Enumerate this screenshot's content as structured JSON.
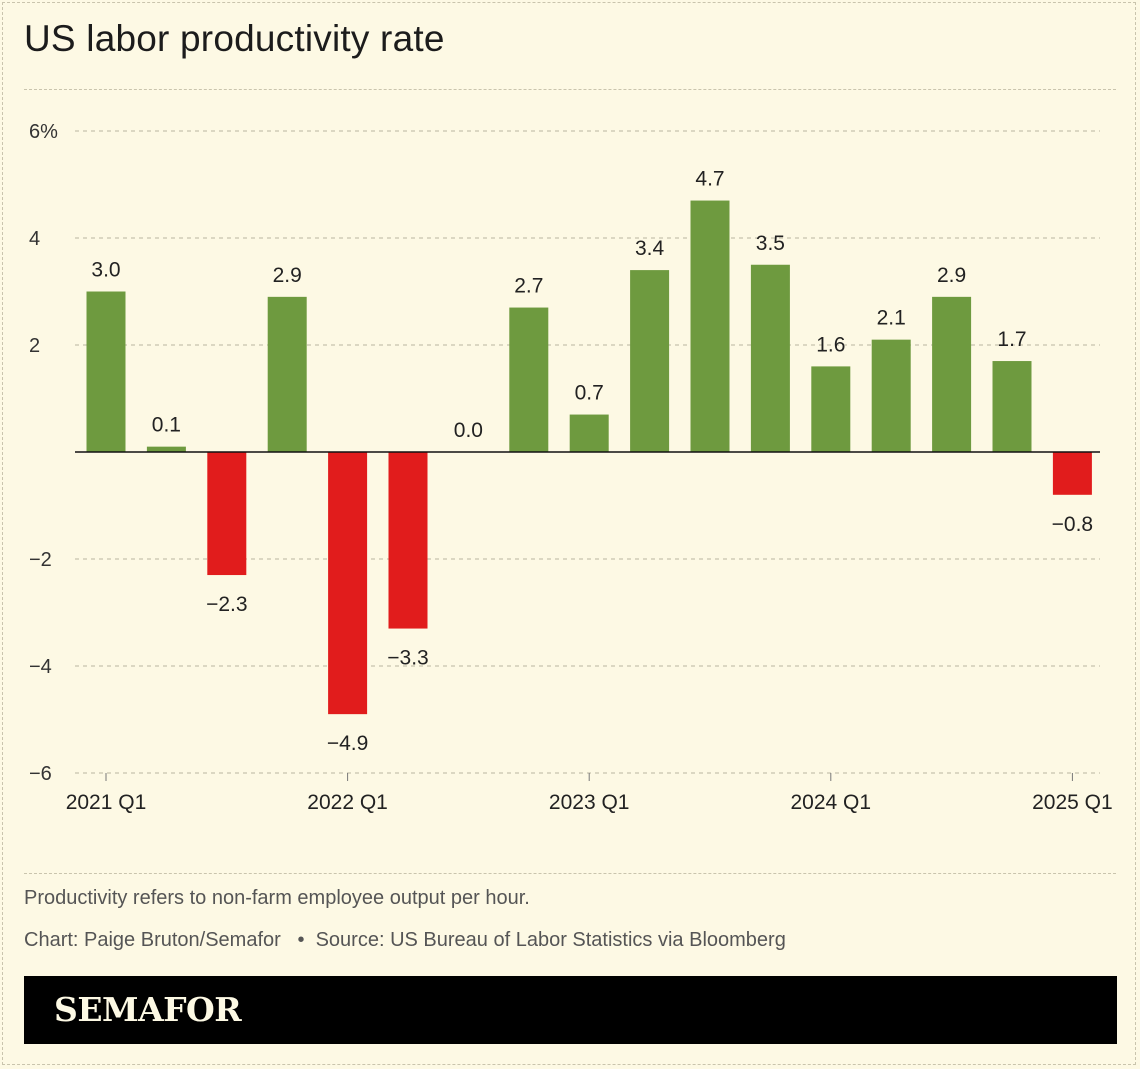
{
  "title": "US labor productivity rate",
  "notes": {
    "definition": "Productivity refers to non-farm employee output per hour.",
    "credit": "Chart: Paige Bruton/Semafor",
    "source": "Source: US Bureau of Labor Statistics via Bloomberg"
  },
  "brand": "SEMAFOR",
  "colors": {
    "positive": "#6e9a3f",
    "negative": "#e11c1c",
    "background": "#fdf9e4"
  },
  "chart_data": {
    "type": "bar",
    "title": "US labor productivity rate",
    "xlabel": "",
    "ylabel": "",
    "ylim": [
      -6,
      6
    ],
    "y_ticks": [
      6,
      4,
      2,
      -2,
      -4,
      -6
    ],
    "y_tick_labels": [
      "6%",
      "4",
      "2",
      "−2",
      "−4",
      "−6"
    ],
    "categories": [
      "2021 Q1",
      "2021 Q2",
      "2021 Q3",
      "2021 Q4",
      "2022 Q1",
      "2022 Q2",
      "2022 Q3",
      "2022 Q4",
      "2023 Q1",
      "2023 Q2",
      "2023 Q3",
      "2023 Q4",
      "2024 Q1",
      "2024 Q2",
      "2024 Q3",
      "2024 Q4",
      "2025 Q1"
    ],
    "x_tick_labels": [
      "2021 Q1",
      "2022 Q1",
      "2023 Q1",
      "2024 Q1",
      "2025 Q1"
    ],
    "values": [
      3.0,
      0.1,
      -2.3,
      2.9,
      -4.9,
      -3.3,
      0.0,
      2.7,
      0.7,
      3.4,
      4.7,
      3.5,
      1.6,
      2.1,
      2.9,
      1.7,
      -0.8
    ],
    "value_labels": [
      "3.0",
      "0.1",
      "−2.3",
      "2.9",
      "−4.9",
      "−3.3",
      "0.0",
      "2.7",
      "0.7",
      "3.4",
      "4.7",
      "3.5",
      "1.6",
      "2.1",
      "2.9",
      "1.7",
      "−0.8"
    ],
    "grid": true
  }
}
